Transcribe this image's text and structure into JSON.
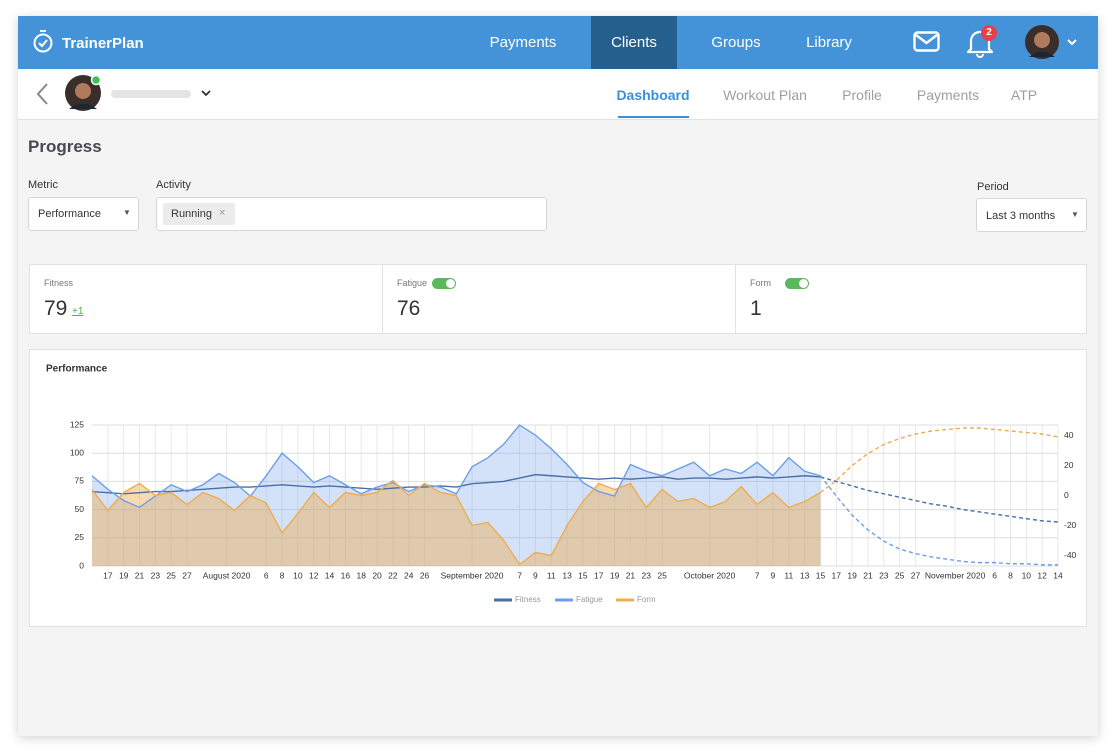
{
  "nav": {
    "brand": "TrainerPlan",
    "items": [
      "Payments",
      "Clients",
      "Groups",
      "Library"
    ],
    "active": 1,
    "notifications": 2
  },
  "client_tabs": {
    "items": [
      "Dashboard",
      "Workout Plan",
      "Profile",
      "Payments",
      "ATP"
    ],
    "active": 0
  },
  "progress": {
    "title": "Progress",
    "metric": {
      "label": "Metric",
      "value": "Performance"
    },
    "activity": {
      "label": "Activity",
      "tag": "Running"
    },
    "period": {
      "label": "Period",
      "value": "Last 3 months"
    }
  },
  "stats": [
    {
      "label": "Fitness",
      "value": 79,
      "change": "+1"
    },
    {
      "label": "Fatigue",
      "value": 76,
      "toggle": true
    },
    {
      "label": "Form",
      "value": 1,
      "toggle": true
    }
  ],
  "chart_data": {
    "type": "line",
    "title": "Performance",
    "x": [
      "2020-07-15",
      "2020-07-17",
      "2020-07-19",
      "2020-07-21",
      "2020-07-23",
      "2020-07-25",
      "2020-07-27",
      "2020-07-29",
      "2020-07-31",
      "2020-08-02",
      "2020-08-04",
      "2020-08-06",
      "2020-08-08",
      "2020-08-10",
      "2020-08-12",
      "2020-08-14",
      "2020-08-16",
      "2020-08-18",
      "2020-08-20",
      "2020-08-22",
      "2020-08-24",
      "2020-08-26",
      "2020-08-28",
      "2020-08-30",
      "2020-09-01",
      "2020-09-03",
      "2020-09-05",
      "2020-09-07",
      "2020-09-09",
      "2020-09-11",
      "2020-09-13",
      "2020-09-15",
      "2020-09-17",
      "2020-09-19",
      "2020-09-21",
      "2020-09-23",
      "2020-09-25",
      "2020-09-27",
      "2020-09-29",
      "2020-10-01",
      "2020-10-03",
      "2020-10-05",
      "2020-10-07",
      "2020-10-09",
      "2020-10-11",
      "2020-10-13",
      "2020-10-15",
      "2020-10-17",
      "2020-10-19",
      "2020-10-21",
      "2020-10-23",
      "2020-10-25",
      "2020-10-27",
      "2020-10-29",
      "2020-10-31",
      "2020-11-02",
      "2020-11-04",
      "2020-11-06",
      "2020-11-08",
      "2020-11-10",
      "2020-11-12",
      "2020-11-14"
    ],
    "xlim": [
      "2020-07-15",
      "2020-11-14"
    ],
    "xticks": [
      {
        "value": "2020-07-17",
        "label": "17"
      },
      {
        "value": "2020-07-19",
        "label": "19"
      },
      {
        "value": "2020-07-21",
        "label": "21"
      },
      {
        "value": "2020-07-23",
        "label": "23"
      },
      {
        "value": "2020-07-25",
        "label": "25"
      },
      {
        "value": "2020-07-27",
        "label": "27"
      },
      {
        "value": "2020-08-01",
        "label": "August 2020"
      },
      {
        "value": "2020-08-06",
        "label": "6"
      },
      {
        "value": "2020-08-08",
        "label": "8"
      },
      {
        "value": "2020-08-10",
        "label": "10"
      },
      {
        "value": "2020-08-12",
        "label": "12"
      },
      {
        "value": "2020-08-14",
        "label": "14"
      },
      {
        "value": "2020-08-16",
        "label": "16"
      },
      {
        "value": "2020-08-18",
        "label": "18"
      },
      {
        "value": "2020-08-20",
        "label": "20"
      },
      {
        "value": "2020-08-22",
        "label": "22"
      },
      {
        "value": "2020-08-24",
        "label": "24"
      },
      {
        "value": "2020-08-26",
        "label": "26"
      },
      {
        "value": "2020-09-01",
        "label": "September 2020"
      },
      {
        "value": "2020-09-07",
        "label": "7"
      },
      {
        "value": "2020-09-09",
        "label": "9"
      },
      {
        "value": "2020-09-11",
        "label": "11"
      },
      {
        "value": "2020-09-13",
        "label": "13"
      },
      {
        "value": "2020-09-15",
        "label": "15"
      },
      {
        "value": "2020-09-17",
        "label": "17"
      },
      {
        "value": "2020-09-19",
        "label": "19"
      },
      {
        "value": "2020-09-21",
        "label": "21"
      },
      {
        "value": "2020-09-23",
        "label": "23"
      },
      {
        "value": "2020-09-25",
        "label": "25"
      },
      {
        "value": "2020-10-01",
        "label": "October 2020"
      },
      {
        "value": "2020-10-07",
        "label": "7"
      },
      {
        "value": "2020-10-09",
        "label": "9"
      },
      {
        "value": "2020-10-11",
        "label": "11"
      },
      {
        "value": "2020-10-13",
        "label": "13"
      },
      {
        "value": "2020-10-15",
        "label": "15"
      },
      {
        "value": "2020-10-17",
        "label": "17"
      },
      {
        "value": "2020-10-19",
        "label": "19"
      },
      {
        "value": "2020-10-21",
        "label": "21"
      },
      {
        "value": "2020-10-23",
        "label": "23"
      },
      {
        "value": "2020-10-25",
        "label": "25"
      },
      {
        "value": "2020-10-27",
        "label": "27"
      },
      {
        "value": "2020-11-01",
        "label": "November 2020"
      },
      {
        "value": "2020-11-06",
        "label": "6"
      },
      {
        "value": "2020-11-08",
        "label": "8"
      },
      {
        "value": "2020-11-10",
        "label": "10"
      },
      {
        "value": "2020-11-12",
        "label": "12"
      },
      {
        "value": "2020-11-14",
        "label": "14"
      }
    ],
    "ylim": [
      0,
      125
    ],
    "yticks": [
      0,
      25,
      50,
      75,
      100,
      125
    ],
    "y2lim": [
      -47,
      47
    ],
    "y2ticks": [
      -40,
      -20,
      0,
      20,
      40
    ],
    "grid": true,
    "dashed_from": "2020-10-15",
    "legend": "bottom",
    "series": [
      {
        "name": "Fitness",
        "color": "#4a6ea6",
        "fill": false,
        "values": [
          66,
          65,
          64,
          65,
          66,
          66,
          67,
          68,
          69,
          70,
          70,
          71,
          72,
          71,
          70,
          71,
          70,
          69,
          68,
          69,
          70,
          70,
          71,
          70,
          73,
          74,
          75,
          78,
          81,
          80,
          79,
          78,
          77,
          78,
          77,
          78,
          79,
          77,
          78,
          78,
          77,
          78,
          79,
          78,
          79,
          80,
          79,
          75,
          71,
          67,
          64,
          61,
          58,
          55,
          53,
          50,
          48,
          46,
          44,
          42,
          40,
          39
        ]
      },
      {
        "name": "Fatigue",
        "color": "#6c9eea",
        "fill": true,
        "values": [
          80,
          68,
          58,
          52,
          62,
          72,
          66,
          72,
          82,
          74,
          62,
          80,
          100,
          88,
          74,
          80,
          72,
          64,
          70,
          74,
          66,
          72,
          70,
          64,
          88,
          96,
          108,
          125,
          116,
          104,
          90,
          74,
          66,
          62,
          90,
          84,
          80,
          86,
          92,
          80,
          86,
          82,
          92,
          80,
          96,
          84,
          80,
          62,
          45,
          32,
          22,
          15,
          11,
          8,
          6,
          4,
          3,
          3,
          2,
          2,
          1,
          1
        ]
      },
      {
        "name": "Form",
        "color": "#efac4f",
        "fill": true,
        "axis": "y2",
        "values": [
          4,
          -10,
          2,
          8,
          0,
          2,
          -6,
          2,
          -2,
          -10,
          0,
          -5,
          -25,
          -12,
          2,
          -8,
          2,
          0,
          2,
          10,
          0,
          8,
          2,
          0,
          -20,
          -18,
          -30,
          -46,
          -38,
          -40,
          -20,
          -4,
          8,
          4,
          8,
          -8,
          4,
          -4,
          -2,
          -8,
          -4,
          6,
          -6,
          2,
          -8,
          -4,
          2,
          10,
          20,
          28,
          34,
          38,
          41,
          43,
          44,
          45,
          45,
          44,
          43,
          42,
          41,
          39
        ]
      }
    ]
  }
}
